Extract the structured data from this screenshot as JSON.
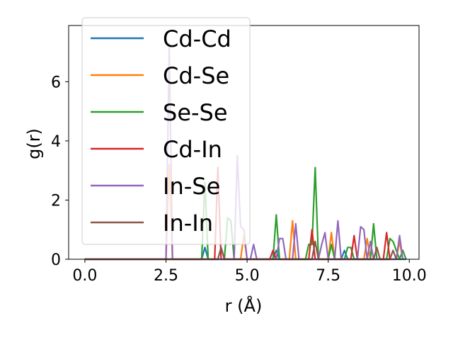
{
  "chart_data": {
    "type": "line",
    "title": "",
    "xlabel": "r (Å)",
    "ylabel": "g(r)",
    "xlim": [
      -0.5,
      10.3
    ],
    "ylim": [
      0,
      7.9
    ],
    "xticks": [
      "0.0",
      "2.5",
      "5.0",
      "7.5",
      "10.0"
    ],
    "xtick_values": [
      0,
      2.5,
      5,
      7.5,
      10
    ],
    "yticks": [
      "0",
      "2",
      "4",
      "6"
    ],
    "ytick_values": [
      0,
      2,
      4,
      6
    ],
    "grid": false,
    "legend_position": "top-left",
    "series": [
      {
        "name": "Cd-Cd",
        "color": "#1f77b4",
        "points": [
          [
            0,
            0
          ],
          [
            3.6,
            0
          ],
          [
            3.7,
            0.4
          ],
          [
            3.8,
            0
          ],
          [
            5.8,
            0
          ],
          [
            5.9,
            0.3
          ],
          [
            6.0,
            0
          ],
          [
            7.9,
            0
          ],
          [
            8.0,
            0.3
          ],
          [
            8.1,
            0
          ],
          [
            9.9,
            0
          ]
        ]
      },
      {
        "name": "Cd-Se",
        "color": "#ff7f0e",
        "points": [
          [
            0,
            0
          ],
          [
            2.5,
            0
          ],
          [
            2.6,
            3.2
          ],
          [
            2.7,
            0
          ],
          [
            4.8,
            0
          ],
          [
            4.9,
            0.8
          ],
          [
            5.0,
            0
          ],
          [
            6.3,
            0
          ],
          [
            6.4,
            1.3
          ],
          [
            6.5,
            0
          ],
          [
            7.5,
            0
          ],
          [
            7.6,
            0.9
          ],
          [
            7.7,
            0
          ],
          [
            8.6,
            0
          ],
          [
            8.7,
            0.7
          ],
          [
            8.8,
            0
          ],
          [
            9.6,
            0
          ],
          [
            9.7,
            0.6
          ],
          [
            9.8,
            0
          ]
        ]
      },
      {
        "name": "Se-Se",
        "color": "#2ca02c",
        "points": [
          [
            0,
            0
          ],
          [
            3.6,
            0
          ],
          [
            3.7,
            2.6
          ],
          [
            3.8,
            0
          ],
          [
            4.3,
            0
          ],
          [
            4.4,
            1.4
          ],
          [
            4.5,
            1.3
          ],
          [
            4.6,
            0
          ],
          [
            5.8,
            0
          ],
          [
            5.9,
            1.5
          ],
          [
            6.0,
            0
          ],
          [
            6.8,
            0
          ],
          [
            6.9,
            0.5
          ],
          [
            7.0,
            0.5
          ],
          [
            7.1,
            3.1
          ],
          [
            7.2,
            0
          ],
          [
            7.5,
            0
          ],
          [
            7.6,
            0.5
          ],
          [
            7.7,
            0
          ],
          [
            8.0,
            0
          ],
          [
            8.1,
            0.4
          ],
          [
            8.2,
            0.4
          ],
          [
            8.3,
            0
          ],
          [
            8.8,
            0
          ],
          [
            8.9,
            1.2
          ],
          [
            9.0,
            0
          ],
          [
            9.3,
            0
          ],
          [
            9.4,
            0.7
          ],
          [
            9.5,
            0.6
          ],
          [
            9.6,
            0.3
          ],
          [
            9.7,
            0
          ],
          [
            9.8,
            0.3
          ],
          [
            9.9,
            0
          ]
        ]
      },
      {
        "name": "Cd-In",
        "color": "#d62728",
        "points": [
          [
            0,
            0
          ],
          [
            4.0,
            0
          ],
          [
            4.1,
            3.1
          ],
          [
            4.2,
            0
          ],
          [
            5.7,
            0
          ],
          [
            5.8,
            0.3
          ],
          [
            5.9,
            0
          ],
          [
            6.9,
            0
          ],
          [
            7.0,
            1.0
          ],
          [
            7.1,
            0
          ],
          [
            8.2,
            0
          ],
          [
            8.3,
            0.8
          ],
          [
            8.4,
            0
          ],
          [
            9.2,
            0
          ],
          [
            9.3,
            0.9
          ],
          [
            9.4,
            0
          ]
        ]
      },
      {
        "name": "In-Se",
        "color": "#9467bd",
        "points": [
          [
            0,
            0
          ],
          [
            2.5,
            0
          ],
          [
            2.6,
            7.3
          ],
          [
            2.7,
            0
          ],
          [
            4.6,
            0
          ],
          [
            4.7,
            3.5
          ],
          [
            4.8,
            1.1
          ],
          [
            4.9,
            1.0
          ],
          [
            5.0,
            0
          ],
          [
            5.1,
            0
          ],
          [
            5.2,
            0.5
          ],
          [
            5.3,
            0
          ],
          [
            5.9,
            0
          ],
          [
            6.0,
            0.7
          ],
          [
            6.1,
            0.7
          ],
          [
            6.2,
            0
          ],
          [
            6.4,
            0
          ],
          [
            6.5,
            1.2
          ],
          [
            6.6,
            0
          ],
          [
            7.2,
            0
          ],
          [
            7.3,
            0.5
          ],
          [
            7.4,
            0.9
          ],
          [
            7.5,
            0
          ],
          [
            7.7,
            0
          ],
          [
            7.8,
            1.3
          ],
          [
            7.9,
            0
          ],
          [
            8.4,
            0
          ],
          [
            8.5,
            1.1
          ],
          [
            8.6,
            1.0
          ],
          [
            8.7,
            0
          ],
          [
            8.8,
            0.6
          ],
          [
            8.9,
            0
          ],
          [
            9.6,
            0
          ],
          [
            9.7,
            0.8
          ],
          [
            9.8,
            0
          ]
        ]
      },
      {
        "name": "In-In",
        "color": "#8c564b",
        "points": [
          [
            0,
            0
          ],
          [
            4.1,
            0
          ],
          [
            4.2,
            0.4
          ],
          [
            4.3,
            0
          ],
          [
            7.0,
            0
          ],
          [
            7.1,
            0.6
          ],
          [
            7.2,
            0
          ],
          [
            8.9,
            0
          ],
          [
            9.0,
            0.4
          ],
          [
            9.1,
            0
          ],
          [
            9.4,
            0
          ],
          [
            9.5,
            0.3
          ],
          [
            9.6,
            0
          ]
        ]
      }
    ]
  }
}
